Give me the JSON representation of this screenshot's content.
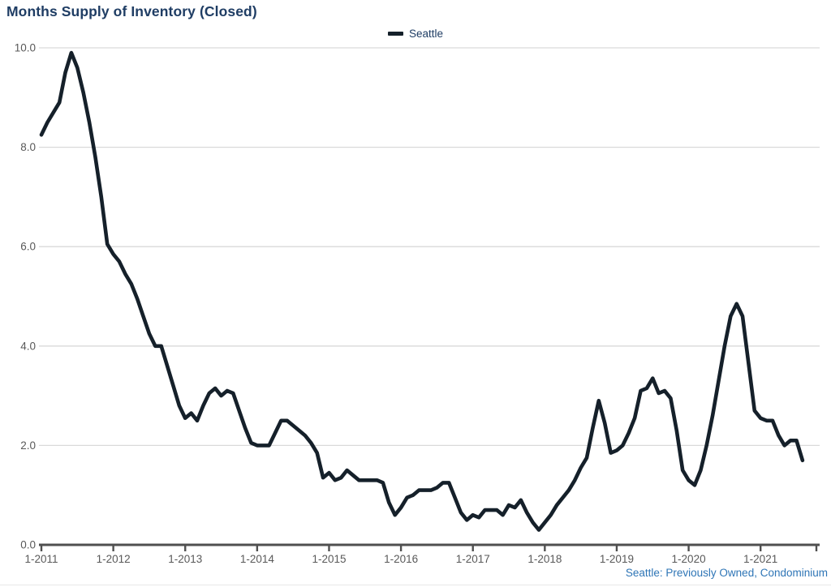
{
  "title": "Months Supply of Inventory (Closed)",
  "legend": {
    "label": "Seattle"
  },
  "footnote": "Seattle: Previously Owned, Condominium",
  "colors": {
    "title_text": "#1f3d64",
    "legend_text": "#1f3d64",
    "series_line": "#15202a",
    "grid_line": "#d9d9d9",
    "axis_line": "#4f4f4f",
    "tick_label": "#595959",
    "footnote_text": "#2e75b6"
  },
  "chart_data": {
    "type": "line",
    "title": "Months Supply of Inventory (Closed)",
    "grid": "horizontal",
    "legend_position": "top-center",
    "ylim": [
      0,
      10
    ],
    "y_ticks": [
      {
        "label": "0.0",
        "value": 0
      },
      {
        "label": "2.0",
        "value": 2
      },
      {
        "label": "4.0",
        "value": 4
      },
      {
        "label": "6.0",
        "value": 6
      },
      {
        "label": "8.0",
        "value": 8
      },
      {
        "label": "10.0",
        "value": 10
      }
    ],
    "x_ticks": [
      {
        "label": "1-2011",
        "month_index": 0
      },
      {
        "label": "1-2012",
        "month_index": 12
      },
      {
        "label": "1-2013",
        "month_index": 24
      },
      {
        "label": "1-2014",
        "month_index": 36
      },
      {
        "label": "1-2015",
        "month_index": 48
      },
      {
        "label": "1-2016",
        "month_index": 60
      },
      {
        "label": "1-2017",
        "month_index": 72
      },
      {
        "label": "1-2018",
        "month_index": 84
      },
      {
        "label": "1-2019",
        "month_index": 96
      },
      {
        "label": "1-2020",
        "month_index": 108
      },
      {
        "label": "1-2021",
        "month_index": 120
      }
    ],
    "series": [
      {
        "name": "Seattle",
        "frequency": "monthly",
        "start_month": "1-2011",
        "end_month": "8-2021",
        "values": [
          8.25,
          8.5,
          8.7,
          8.9,
          9.5,
          9.9,
          9.6,
          9.1,
          8.5,
          7.8,
          7.0,
          6.05,
          5.85,
          5.7,
          5.45,
          5.25,
          4.95,
          4.6,
          4.25,
          4.0,
          4.0,
          3.6,
          3.2,
          2.8,
          2.55,
          2.65,
          2.5,
          2.8,
          3.05,
          3.15,
          3.0,
          3.1,
          3.05,
          2.7,
          2.35,
          2.05,
          2.0,
          2.0,
          2.0,
          2.25,
          2.5,
          2.5,
          2.4,
          2.3,
          2.2,
          2.05,
          1.85,
          1.35,
          1.45,
          1.3,
          1.35,
          1.5,
          1.4,
          1.3,
          1.3,
          1.3,
          1.3,
          1.25,
          0.85,
          0.6,
          0.75,
          0.95,
          1.0,
          1.1,
          1.1,
          1.1,
          1.15,
          1.25,
          1.25,
          0.95,
          0.65,
          0.5,
          0.6,
          0.55,
          0.7,
          0.7,
          0.7,
          0.6,
          0.8,
          0.75,
          0.9,
          0.65,
          0.45,
          0.3,
          0.45,
          0.6,
          0.8,
          0.95,
          1.1,
          1.3,
          1.55,
          1.75,
          2.35,
          2.9,
          2.45,
          1.85,
          1.9,
          2.0,
          2.25,
          2.55,
          3.1,
          3.15,
          3.35,
          3.05,
          3.1,
          2.95,
          2.3,
          1.5,
          1.3,
          1.2,
          1.5,
          2.0,
          2.6,
          3.3,
          4.0,
          4.6,
          4.85,
          4.6,
          3.65,
          2.7,
          2.55,
          2.5,
          2.5,
          2.2,
          2.0,
          2.1,
          2.1,
          1.7
        ]
      }
    ]
  }
}
